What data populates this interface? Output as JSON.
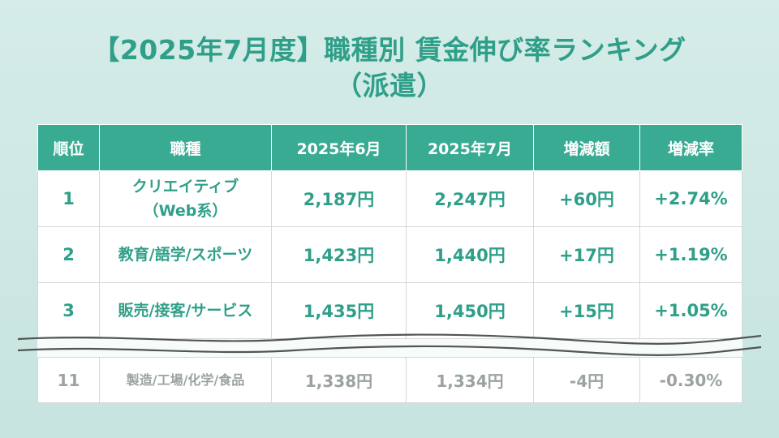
{
  "title": {
    "line1": "【2025年7月度】職種別 賃金伸び率ランキング",
    "line2": "（派遣）"
  },
  "table": {
    "headers": [
      "順位",
      "職種",
      "2025年6月",
      "2025年7月",
      "増減額",
      "増減率"
    ],
    "rows": [
      {
        "rank": "1",
        "job": "クリエイティブ\n（Web系）",
        "june": "2,187円",
        "july": "2,247円",
        "diff": "+60円",
        "rate": "+2.74%"
      },
      {
        "rank": "2",
        "job": "教育/語学/スポーツ",
        "june": "1,423円",
        "july": "1,440円",
        "diff": "+17円",
        "rate": "+1.19%"
      },
      {
        "rank": "3",
        "job": "販売/接客/サービス",
        "june": "1,435円",
        "july": "1,450円",
        "diff": "+15円",
        "rate": "+1.05%"
      },
      {
        "rank": "11",
        "job": "製造/工場/化学/食品",
        "june": "1,338円",
        "july": "1,334円",
        "diff": "-4円",
        "rate": "-0.30%"
      }
    ]
  },
  "colors": {
    "accent": "#39ab93",
    "title": "#2f9f89",
    "muted": "#9ba3a1",
    "background": "#cfe7e3"
  }
}
